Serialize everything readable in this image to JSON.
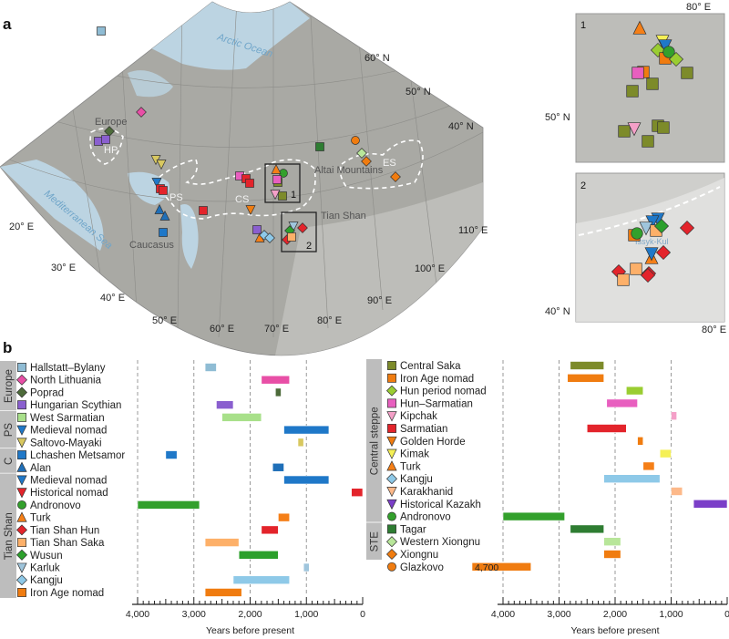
{
  "panel_labels": {
    "a": "a",
    "b": "b"
  },
  "map": {
    "labels": {
      "arctic": "Arctic Ocean",
      "med": "Mediterranean Sea",
      "europe": "Europe",
      "hp": "HP",
      "ps": "PS",
      "cs": "CS",
      "caucasus": "Caucasus",
      "altai": "Altai Mountains",
      "tianshan": "Tian Shan",
      "es": "ES",
      "box1": "1",
      "box2": "2",
      "issyk": "Issyk-Kul"
    },
    "graticule": {
      "lat": [
        "60° N",
        "50° N",
        "40° N"
      ],
      "lon": [
        "20° E",
        "30° E",
        "40° E",
        "50° E",
        "60° E",
        "70° E",
        "80° E",
        "90° E",
        "100° E",
        "110° E"
      ]
    },
    "insets": {
      "inset1": {
        "label": "1",
        "top_lon": "80° E",
        "lat": "50° N"
      },
      "inset2": {
        "label": "2",
        "lat": "40° N",
        "bottom_lon": "80° E"
      }
    },
    "colors": {
      "land": "#a9a9a4",
      "sea": "#bcd4e2",
      "region_outline": "#ffffff"
    }
  },
  "chart_data": [
    {
      "type": "bar",
      "orientation": "horizontal-range",
      "xlabel": "Years before present",
      "xlim": [
        4000,
        0
      ],
      "x_reversed": true,
      "xticks": [
        "4,000",
        "3,000",
        "2,000",
        "1,000",
        "0"
      ],
      "grid": "dashed vertical at 1,000-year intervals",
      "groups": [
        {
          "name": "Europe",
          "rows": [
            0,
            3
          ]
        },
        {
          "name": "PS",
          "rows": [
            4,
            6
          ]
        },
        {
          "name": "C",
          "rows": [
            7,
            8
          ]
        },
        {
          "name": "Tian Shan",
          "rows": [
            9,
            18
          ]
        }
      ],
      "series": [
        {
          "name": "Hallstatt–Bylany",
          "marker": "square",
          "color": "#8fbcd4",
          "range": [
            2800,
            2600
          ]
        },
        {
          "name": "North Lithuania",
          "marker": "diamond",
          "color": "#e84fa6",
          "range": [
            1800,
            1300
          ]
        },
        {
          "name": "Poprad",
          "marker": "diamond",
          "color": "#4d6b3a",
          "range": [
            1550,
            1450
          ]
        },
        {
          "name": "Hungarian Scythian",
          "marker": "square",
          "color": "#8a5fcf",
          "range": [
            2600,
            2300
          ]
        },
        {
          "name": "West Sarmatian",
          "marker": "square",
          "color": "#a8e08a",
          "range": [
            2500,
            1800
          ]
        },
        {
          "name": "Medieval nomad",
          "marker": "triangle-down",
          "color": "#1f78c8",
          "range": [
            1400,
            600
          ]
        },
        {
          "name": "Saltovo-Mayaki",
          "marker": "triangle-down",
          "color": "#d8c860",
          "range": [
            1150,
            1050
          ]
        },
        {
          "name": "Lchashen Metsamor",
          "marker": "square",
          "color": "#1f78c8",
          "range": [
            3500,
            3300
          ]
        },
        {
          "name": "Alan",
          "marker": "triangle-up",
          "color": "#1f6fb8",
          "range": [
            1600,
            1400
          ]
        },
        {
          "name": "Medieval nomad",
          "marker": "triangle-down",
          "color": "#1f78c8",
          "range": [
            1400,
            600
          ]
        },
        {
          "name": "Historical nomad",
          "marker": "triangle-down",
          "color": "#e3242b",
          "range": [
            200,
            0
          ]
        },
        {
          "name": "Andronovo",
          "marker": "circle",
          "color": "#33a02c",
          "range": [
            4000,
            2900
          ]
        },
        {
          "name": "Turk",
          "marker": "triangle-up",
          "color": "#f57f17",
          "range": [
            1500,
            1300
          ]
        },
        {
          "name": "Tian Shan Hun",
          "marker": "diamond",
          "color": "#e3242b",
          "range": [
            1800,
            1500
          ]
        },
        {
          "name": "Tian Shan Saka",
          "marker": "square",
          "color": "#fdb069",
          "range": [
            2800,
            2200
          ]
        },
        {
          "name": "Wusun",
          "marker": "diamond",
          "color": "#2ca02c",
          "range": [
            2200,
            1500
          ]
        },
        {
          "name": "Karluk",
          "marker": "triangle-down",
          "color": "#9fc5dc",
          "range": [
            1050,
            950
          ]
        },
        {
          "name": "Kangju",
          "marker": "diamond",
          "color": "#8ec9e8",
          "range": [
            2300,
            1300
          ]
        },
        {
          "name": "Iron Age nomad",
          "marker": "square",
          "color": "#f07c10",
          "range": [
            2800,
            2150
          ]
        }
      ]
    },
    {
      "type": "bar",
      "orientation": "horizontal-range",
      "xlabel": "Years before present",
      "xlim": [
        4000,
        0
      ],
      "x_reversed": true,
      "xticks": [
        "4,000",
        "3,000",
        "2,000",
        "1,000",
        "0"
      ],
      "grid": "dashed vertical at 1,000-year intervals",
      "groups": [
        {
          "name": "Central steppe",
          "rows": [
            0,
            12
          ]
        },
        {
          "name": "STE",
          "rows": [
            13,
            15
          ]
        }
      ],
      "series": [
        {
          "name": "Central Saka",
          "marker": "square",
          "color": "#7d8b2a",
          "range": [
            2800,
            2200
          ]
        },
        {
          "name": "Iron Age nomad",
          "marker": "square",
          "color": "#f07c10",
          "range": [
            2850,
            2200
          ]
        },
        {
          "name": "Hun period nomad",
          "marker": "diamond",
          "color": "#9acd32",
          "range": [
            1800,
            1500
          ]
        },
        {
          "name": "Hun–Sarmatian",
          "marker": "square",
          "color": "#e85fbf",
          "range": [
            2150,
            1600
          ]
        },
        {
          "name": "Kipchak",
          "marker": "triangle-down",
          "color": "#f4a0c8",
          "range": [
            1000,
            900
          ]
        },
        {
          "name": "Sarmatian",
          "marker": "square",
          "color": "#e3242b",
          "range": [
            2500,
            1800
          ]
        },
        {
          "name": "Golden Horde",
          "marker": "triangle-down",
          "color": "#f07c10",
          "range": [
            1600,
            1500
          ]
        },
        {
          "name": "Kimak",
          "marker": "triangle-down",
          "color": "#f5f056",
          "range": [
            1200,
            1000
          ]
        },
        {
          "name": "Turk",
          "marker": "triangle-up",
          "color": "#f57f17",
          "range": [
            1500,
            1300
          ]
        },
        {
          "name": "Kangju",
          "marker": "diamond",
          "color": "#8ec9e8",
          "range": [
            2200,
            1200
          ]
        },
        {
          "name": "Karakhanid",
          "marker": "triangle-down",
          "color": "#fdb98a",
          "range": [
            1000,
            800
          ]
        },
        {
          "name": "Historical Kazakh",
          "marker": "triangle-down",
          "color": "#7b3fc8",
          "range": [
            600,
            0
          ]
        },
        {
          "name": "Andronovo",
          "marker": "circle",
          "color": "#33a02c",
          "range": [
            4000,
            2900
          ]
        },
        {
          "name": "Tagar",
          "marker": "square",
          "color": "#2e7d32",
          "range": [
            2800,
            2200
          ]
        },
        {
          "name": "Western Xiongnu",
          "marker": "diamond",
          "color": "#b8e69a",
          "range": [
            2200,
            1900
          ]
        },
        {
          "name": "Xiongnu",
          "marker": "diamond",
          "color": "#f07c10",
          "range": [
            2200,
            1900
          ]
        },
        {
          "name": "Glazkovo",
          "marker": "circle",
          "color": "#f07c10",
          "range": [
            4700,
            3500
          ],
          "bar_label": "4,700"
        }
      ]
    }
  ]
}
